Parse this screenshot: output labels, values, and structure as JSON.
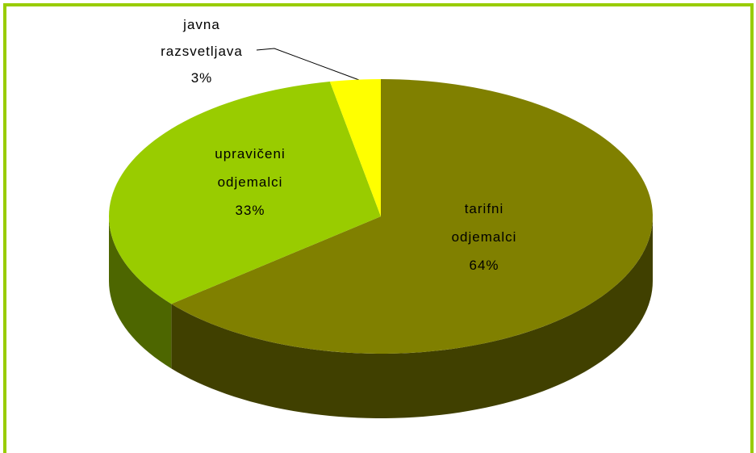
{
  "chart_data": {
    "type": "pie",
    "categories": [
      "tarifni odjemalci",
      "upravičeni odjemalci",
      "javna razsvetljava"
    ],
    "values": [
      64,
      33,
      3
    ],
    "value_labels": [
      "64%",
      "33%",
      "3%"
    ],
    "colors": [
      "#808000",
      "#99cc00",
      "#ffff00"
    ]
  }
}
